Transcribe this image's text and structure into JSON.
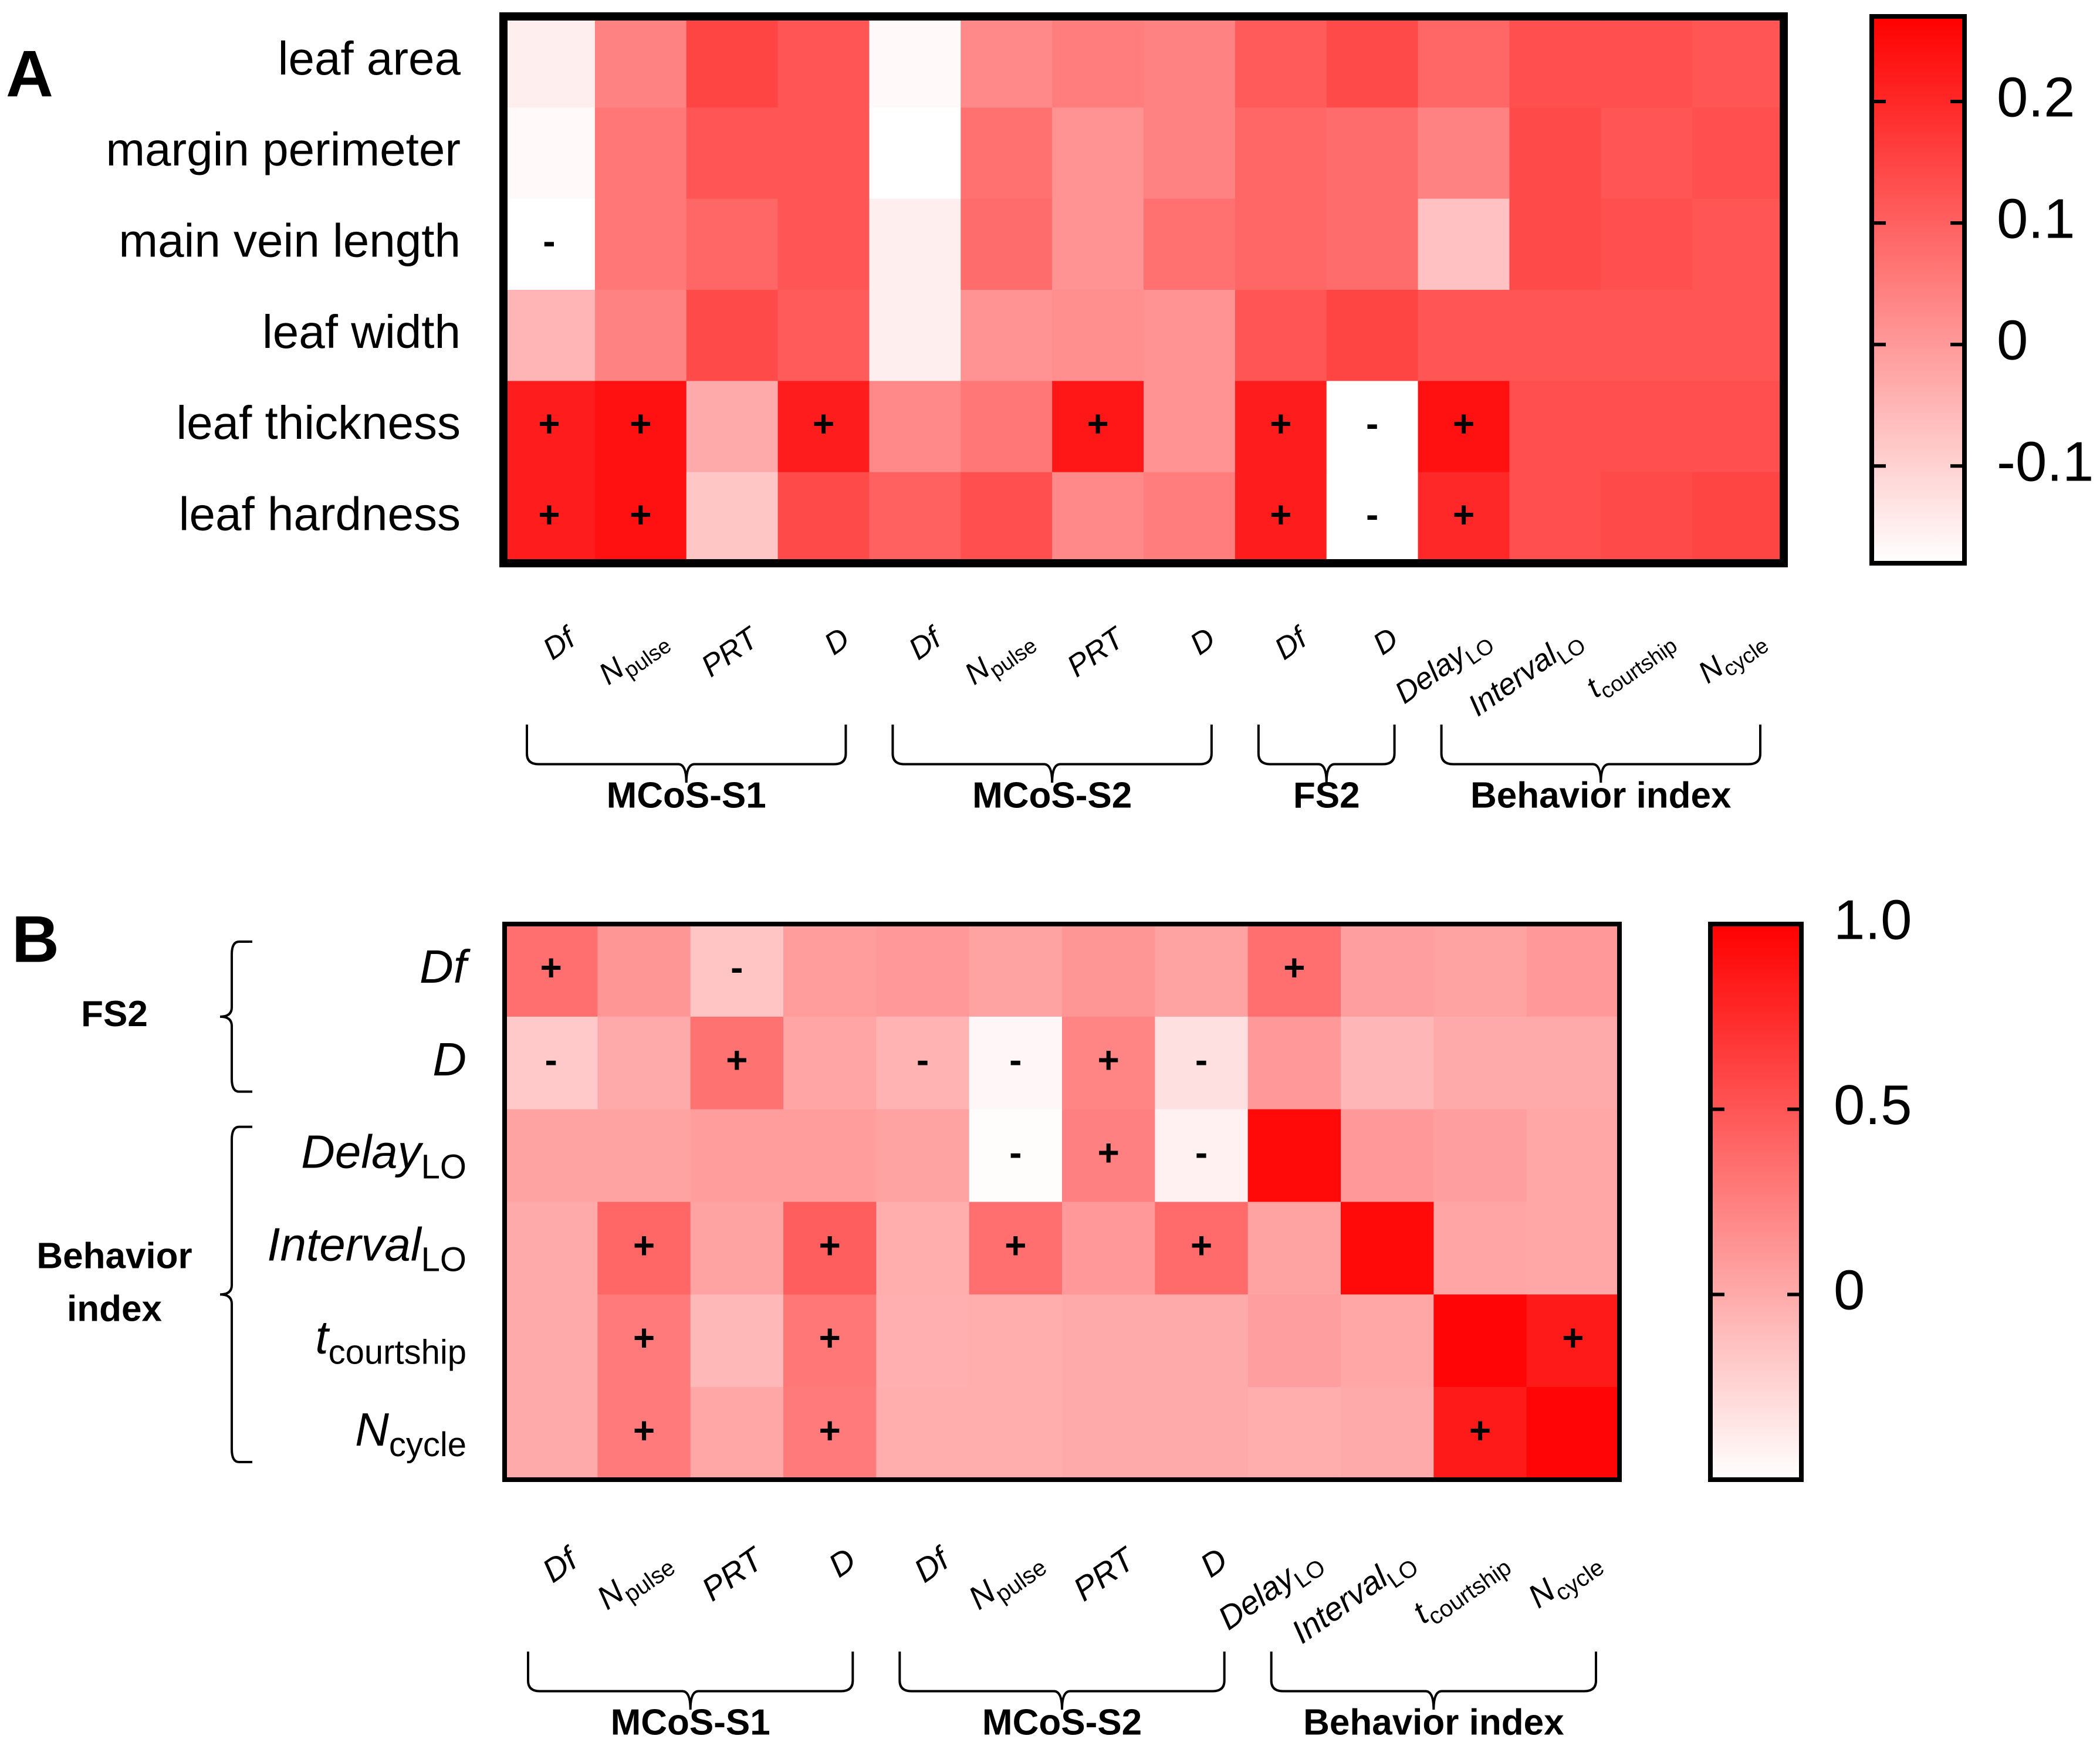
{
  "chart_data": [
    {
      "id": "A",
      "type": "heatmap",
      "panel_label": "A",
      "rows": [
        "leaf area",
        "margin perimeter",
        "main vein length",
        "leaf width",
        "leaf thickness",
        "leaf hardness"
      ],
      "rows_italic": false,
      "columns": [
        {
          "base": "Df",
          "sub": ""
        },
        {
          "base": "N",
          "sub": "pulse"
        },
        {
          "base": "PRT",
          "sub": ""
        },
        {
          "base": "D",
          "sub": ""
        },
        {
          "base": "Df",
          "sub": ""
        },
        {
          "base": "N",
          "sub": "pulse"
        },
        {
          "base": "PRT",
          "sub": ""
        },
        {
          "base": "D",
          "sub": ""
        },
        {
          "base": "Df",
          "sub": ""
        },
        {
          "base": "D",
          "sub": ""
        },
        {
          "base": "Delay",
          "sub": "LO"
        },
        {
          "base": "Interval",
          "sub": "LO"
        },
        {
          "base": "t",
          "sub": "courtship"
        },
        {
          "base": "N",
          "sub": "cycle"
        }
      ],
      "column_groups": [
        {
          "label": "MCoS-S1",
          "start": 0,
          "end": 3
        },
        {
          "label": "MCoS-S2",
          "start": 4,
          "end": 7
        },
        {
          "label": "FS2",
          "start": 8,
          "end": 9
        },
        {
          "label": "Behavior index",
          "start": 10,
          "end": 13
        }
      ],
      "values": [
        [
          -0.15,
          0.04,
          0.15,
          0.12,
          -0.17,
          0.03,
          0.05,
          0.04,
          0.11,
          0.14,
          0.09,
          0.13,
          0.13,
          0.12
        ],
        [
          -0.17,
          0.06,
          0.12,
          0.12,
          -0.19,
          0.07,
          0.01,
          0.04,
          0.09,
          0.08,
          0.04,
          0.14,
          0.12,
          0.13
        ],
        [
          -0.19,
          0.06,
          0.09,
          0.12,
          -0.15,
          0.08,
          0.01,
          0.07,
          0.09,
          0.08,
          -0.07,
          0.14,
          0.13,
          0.12
        ],
        [
          -0.05,
          0.04,
          0.14,
          0.11,
          -0.15,
          0.01,
          0.02,
          0.01,
          0.12,
          0.15,
          0.12,
          0.12,
          0.12,
          0.12
        ],
        [
          0.22,
          0.24,
          -0.03,
          0.22,
          0.03,
          0.06,
          0.23,
          0.01,
          0.22,
          -0.18,
          0.24,
          0.13,
          0.13,
          0.13
        ],
        [
          0.22,
          0.24,
          -0.08,
          0.14,
          0.1,
          0.13,
          0.03,
          0.05,
          0.22,
          -0.22,
          0.2,
          0.13,
          0.14,
          0.15
        ]
      ],
      "significance": [
        [
          "",
          "",
          "",
          "",
          "",
          "",
          "",
          "",
          "",
          "",
          "",
          "",
          "",
          ""
        ],
        [
          "",
          "",
          "",
          "",
          "",
          "",
          "",
          "",
          "",
          "",
          "",
          "",
          "",
          ""
        ],
        [
          "-",
          "",
          "",
          "",
          "",
          "",
          "",
          "",
          "",
          "",
          "",
          "",
          "",
          ""
        ],
        [
          "",
          "",
          "",
          "",
          "",
          "",
          "",
          "",
          "",
          "",
          "",
          "",
          "",
          ""
        ],
        [
          "+",
          "+",
          "",
          "+",
          "",
          "",
          "+",
          "",
          "+",
          "-",
          "+",
          "",
          "",
          ""
        ],
        [
          "+",
          "+",
          "",
          "",
          "",
          "",
          "",
          "",
          "+",
          "-",
          "+",
          "",
          "",
          ""
        ]
      ],
      "colorbar": {
        "vmin": -0.18,
        "vmax": 0.27,
        "ticks": [
          0.2,
          0.1,
          0,
          -0.1
        ],
        "tick_labels": [
          "0.2",
          "0.1",
          "0",
          "-0.1"
        ]
      },
      "colors": {
        "low": "#ffffff",
        "high": "#ff0000",
        "border": "#000000"
      }
    },
    {
      "id": "B",
      "type": "heatmap",
      "panel_label": "B",
      "rows": [
        {
          "base": "Df",
          "sub": ""
        },
        {
          "base": "D",
          "sub": ""
        },
        {
          "base": "Delay",
          "sub": "LO"
        },
        {
          "base": "Interval",
          "sub": "LO"
        },
        {
          "base": "t",
          "sub": "courtship"
        },
        {
          "base": "N",
          "sub": "cycle"
        }
      ],
      "rows_italic": true,
      "row_groups": [
        {
          "label": "FS2",
          "start": 0,
          "end": 1
        },
        {
          "label": "Behavior index",
          "start": 2,
          "end": 5
        }
      ],
      "columns": [
        {
          "base": "Df",
          "sub": ""
        },
        {
          "base": "N",
          "sub": "pulse"
        },
        {
          "base": "PRT",
          "sub": ""
        },
        {
          "base": "D",
          "sub": ""
        },
        {
          "base": "Df",
          "sub": ""
        },
        {
          "base": "N",
          "sub": "pulse"
        },
        {
          "base": "PRT",
          "sub": ""
        },
        {
          "base": "D",
          "sub": ""
        },
        {
          "base": "Delay",
          "sub": "LO"
        },
        {
          "base": "Interval",
          "sub": "LO"
        },
        {
          "base": "t",
          "sub": "courtship"
        },
        {
          "base": "N",
          "sub": "cycle"
        }
      ],
      "column_groups": [
        {
          "label": "MCoS-S1",
          "start": 0,
          "end": 3
        },
        {
          "label": "MCoS-S2",
          "start": 4,
          "end": 7
        },
        {
          "label": "Behavior index",
          "start": 8,
          "end": 11
        }
      ],
      "values": [
        [
          0.35,
          0.12,
          -0.15,
          0.08,
          0.1,
          0.05,
          0.12,
          0.05,
          0.35,
          0.07,
          0.05,
          0.1
        ],
        [
          -0.18,
          0.0,
          0.33,
          0.03,
          -0.05,
          -0.45,
          0.22,
          -0.32,
          0.1,
          -0.07,
          0.0,
          0.0
        ],
        [
          0.05,
          0.05,
          0.08,
          0.08,
          0.05,
          -0.48,
          0.25,
          -0.42,
          0.95,
          0.1,
          0.07,
          0.02
        ],
        [
          0.0,
          0.4,
          0.05,
          0.45,
          -0.02,
          0.35,
          0.1,
          0.37,
          0.05,
          0.95,
          0.03,
          0.02
        ],
        [
          0.0,
          0.28,
          -0.08,
          0.3,
          -0.03,
          -0.02,
          0.0,
          0.0,
          0.07,
          0.02,
          0.97,
          0.85
        ],
        [
          0.0,
          0.28,
          0.02,
          0.28,
          -0.02,
          -0.02,
          0.0,
          0.0,
          -0.02,
          0.0,
          0.85,
          0.97
        ]
      ],
      "significance": [
        [
          "+",
          "",
          "-",
          "",
          "",
          "",
          "",
          "",
          "+",
          "",
          "",
          ""
        ],
        [
          "-",
          "",
          "+",
          "",
          "-",
          "-",
          "+",
          "-",
          "",
          "",
          "",
          ""
        ],
        [
          "",
          "",
          "",
          "",
          "",
          "-",
          "+",
          "-",
          "",
          "",
          "",
          ""
        ],
        [
          "",
          "+",
          "",
          "+",
          "",
          "+",
          "",
          "+",
          "",
          "",
          "",
          ""
        ],
        [
          "",
          "+",
          "",
          "+",
          "",
          "",
          "",
          "",
          "",
          "",
          "",
          "+"
        ],
        [
          "",
          "+",
          "",
          "+",
          "",
          "",
          "",
          "",
          "",
          "",
          "+",
          ""
        ]
      ],
      "colorbar": {
        "vmin": -0.5,
        "vmax": 1.0,
        "ticks": [
          1.0,
          0.5,
          0
        ],
        "tick_labels": [
          "1.0",
          "0.5",
          "0"
        ]
      },
      "colors": {
        "low": "#ffffff",
        "high": "#ff0000",
        "border": "#000000"
      }
    }
  ]
}
